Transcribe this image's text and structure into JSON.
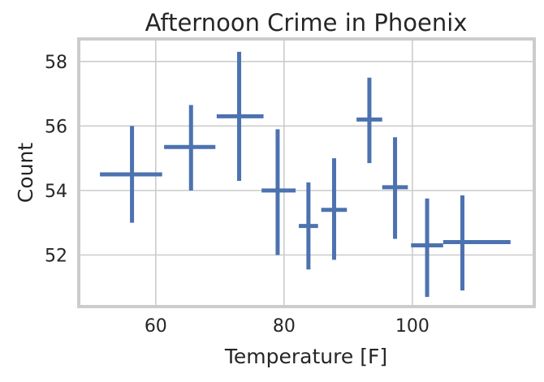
{
  "chart_data": {
    "type": "scatter",
    "title": "Afternoon Crime in Phoenix",
    "xlabel": "Temperature [F]",
    "ylabel": "Count",
    "xlim": [
      48,
      119
    ],
    "ylim": [
      50.4,
      58.7
    ],
    "xticks": [
      60,
      80,
      100
    ],
    "yticks": [
      52,
      54,
      56,
      58
    ],
    "grid": true,
    "color": "#4c72b0",
    "points": [
      {
        "x": 56.3,
        "y": 54.5,
        "xerr": [
          51.3,
          61.0
        ],
        "yerr": [
          53.0,
          56.0
        ]
      },
      {
        "x": 65.5,
        "y": 55.35,
        "xerr": [
          61.3,
          69.3
        ],
        "yerr": [
          54.0,
          56.65
        ]
      },
      {
        "x": 73.0,
        "y": 56.3,
        "xerr": [
          69.5,
          76.8
        ],
        "yerr": [
          54.3,
          58.3
        ]
      },
      {
        "x": 79.0,
        "y": 54.0,
        "xerr": [
          76.5,
          81.8
        ],
        "yerr": [
          52.0,
          55.9
        ]
      },
      {
        "x": 83.8,
        "y": 52.9,
        "xerr": [
          82.3,
          85.3
        ],
        "yerr": [
          51.55,
          54.25
        ]
      },
      {
        "x": 87.8,
        "y": 53.4,
        "xerr": [
          85.8,
          89.8
        ],
        "yerr": [
          51.85,
          55.0
        ]
      },
      {
        "x": 93.3,
        "y": 56.2,
        "xerr": [
          91.3,
          95.3
        ],
        "yerr": [
          54.85,
          57.5
        ]
      },
      {
        "x": 97.3,
        "y": 54.1,
        "xerr": [
          95.3,
          99.3
        ],
        "yerr": [
          52.5,
          55.65
        ]
      },
      {
        "x": 102.3,
        "y": 52.3,
        "xerr": [
          99.8,
          104.8
        ],
        "yerr": [
          50.7,
          53.75
        ]
      },
      {
        "x": 107.8,
        "y": 52.4,
        "xerr": [
          104.8,
          115.3
        ],
        "yerr": [
          50.9,
          53.85
        ]
      }
    ]
  }
}
